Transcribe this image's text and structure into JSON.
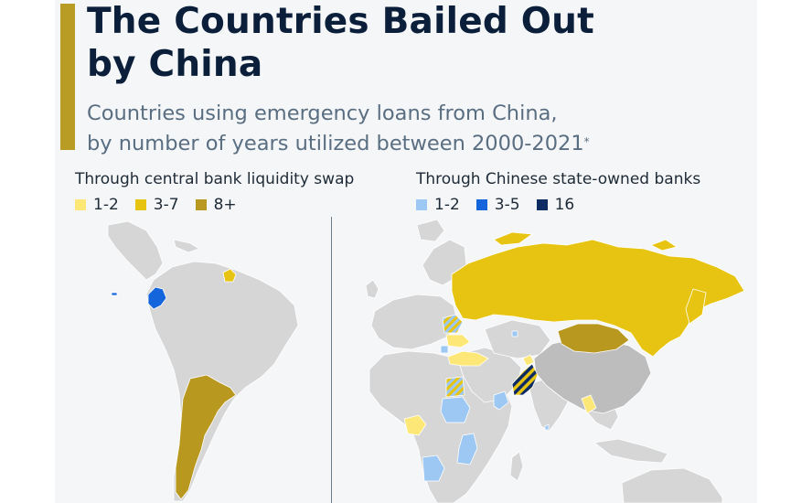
{
  "title": {
    "line1": "The Countries Bailed Out",
    "line2": "by China"
  },
  "subtitle": {
    "line1": "Countries using emergency loans from China,",
    "line2": "by number of years utilized between 2000-2021"
  },
  "footnote_marker": "*",
  "colors": {
    "accent": "#b89c24",
    "land": "#d6d6d6",
    "land_dark": "#bdbdbd",
    "swap_1_2": "#fde877",
    "swap_3_7": "#e8c412",
    "swap_8_plus": "#b9981f",
    "bank_1_2": "#9cc8f3",
    "bank_3_5": "#1464dc",
    "bank_16": "#0d2c63"
  },
  "legends": {
    "swap": {
      "title": "Through central bank liquidity swap",
      "items": [
        {
          "label": "1-2",
          "color": "#fde877"
        },
        {
          "label": "3-7",
          "color": "#e8c412"
        },
        {
          "label": "8+",
          "color": "#b9981f"
        }
      ]
    },
    "banks": {
      "title": "Through Chinese state-owned banks",
      "items": [
        {
          "label": "1-2",
          "color": "#9cc8f3"
        },
        {
          "label": "3-5",
          "color": "#1464dc"
        },
        {
          "label": "16",
          "color": "#0d2c63"
        }
      ]
    }
  }
}
